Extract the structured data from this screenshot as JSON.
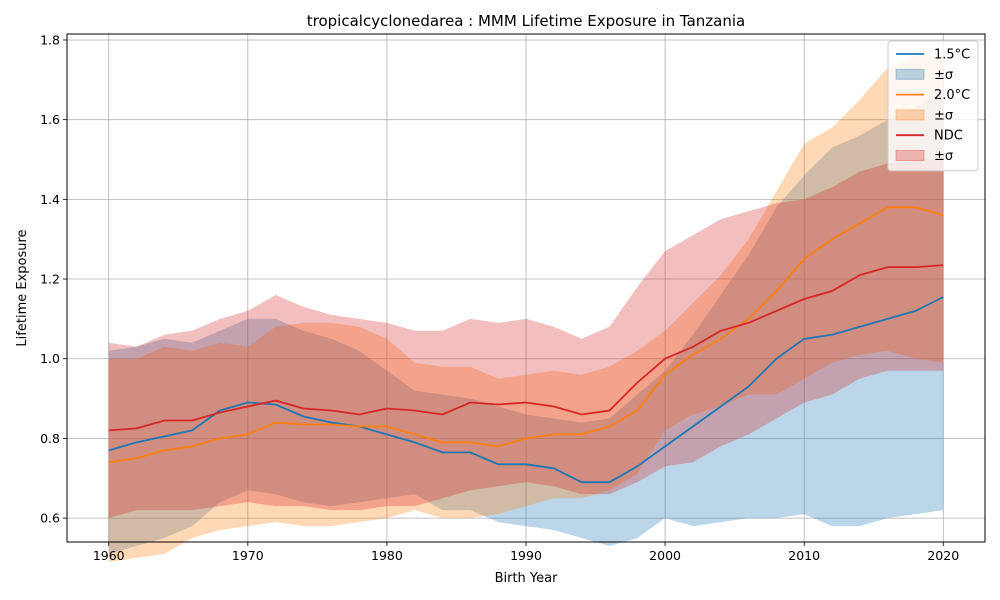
{
  "chart_data": {
    "type": "line",
    "title": "tropicalcyclonedarea : MMM Lifetime Exposure in Tanzania",
    "xlabel": "Birth Year",
    "ylabel": "Lifetime Exposure",
    "xlim": [
      1957,
      2023
    ],
    "ylim": [
      0.54,
      1.815
    ],
    "xticks": [
      1960,
      1970,
      1980,
      1990,
      2000,
      2010,
      2020
    ],
    "yticks": [
      0.6,
      0.8,
      1.0,
      1.2,
      1.4,
      1.6,
      1.8
    ],
    "ytick_labels": [
      "0.6",
      "0.8",
      "1.0",
      "1.2",
      "1.4",
      "1.6",
      "1.8"
    ],
    "grid": true,
    "legend_position": "top-right",
    "band_label": "±σ",
    "series": [
      {
        "name": "1.5°C",
        "color": "#1f77b4",
        "years": [
          1960,
          1962,
          1964,
          1966,
          1968,
          1970,
          1972,
          1974,
          1976,
          1978,
          1980,
          1982,
          1984,
          1986,
          1988,
          1990,
          1992,
          1994,
          1996,
          1998,
          2000,
          2002,
          2004,
          2006,
          2008,
          2010,
          2012,
          2014,
          2016,
          2018,
          2020
        ],
        "mean": [
          0.77,
          0.79,
          0.805,
          0.82,
          0.87,
          0.89,
          0.885,
          0.855,
          0.84,
          0.83,
          0.81,
          0.79,
          0.765,
          0.765,
          0.735,
          0.735,
          0.725,
          0.69,
          0.69,
          0.73,
          0.78,
          0.83,
          0.88,
          0.93,
          1.0,
          1.05,
          1.06,
          1.08,
          1.1,
          1.12,
          1.155
        ],
        "upper": [
          1.02,
          1.03,
          1.05,
          1.04,
          1.07,
          1.1,
          1.1,
          1.07,
          1.05,
          1.02,
          0.97,
          0.92,
          0.91,
          0.9,
          0.88,
          0.86,
          0.85,
          0.84,
          0.85,
          0.91,
          0.97,
          1.06,
          1.16,
          1.26,
          1.38,
          1.46,
          1.53,
          1.56,
          1.6,
          1.63,
          1.67
        ],
        "lower": [
          0.51,
          0.53,
          0.55,
          0.58,
          0.64,
          0.67,
          0.66,
          0.64,
          0.63,
          0.64,
          0.65,
          0.66,
          0.62,
          0.62,
          0.59,
          0.58,
          0.57,
          0.55,
          0.53,
          0.55,
          0.6,
          0.58,
          0.59,
          0.6,
          0.6,
          0.61,
          0.58,
          0.58,
          0.6,
          0.61,
          0.62
        ]
      },
      {
        "name": "2.0°C",
        "color": "#ff7f0e",
        "years": [
          1960,
          1962,
          1964,
          1966,
          1968,
          1970,
          1972,
          1974,
          1976,
          1978,
          1980,
          1982,
          1984,
          1986,
          1988,
          1990,
          1992,
          1994,
          1996,
          1998,
          2000,
          2002,
          2004,
          2006,
          2008,
          2010,
          2012,
          2014,
          2016,
          2018,
          2020
        ],
        "mean": [
          0.74,
          0.75,
          0.77,
          0.78,
          0.8,
          0.81,
          0.84,
          0.835,
          0.835,
          0.83,
          0.83,
          0.81,
          0.79,
          0.79,
          0.78,
          0.8,
          0.81,
          0.81,
          0.83,
          0.87,
          0.96,
          1.01,
          1.05,
          1.1,
          1.17,
          1.25,
          1.3,
          1.34,
          1.38,
          1.38,
          1.36
        ],
        "upper": [
          1.0,
          1.0,
          1.03,
          1.02,
          1.04,
          1.03,
          1.08,
          1.09,
          1.09,
          1.08,
          1.05,
          0.99,
          0.98,
          0.98,
          0.95,
          0.96,
          0.97,
          0.96,
          0.98,
          1.02,
          1.07,
          1.14,
          1.21,
          1.3,
          1.42,
          1.54,
          1.58,
          1.65,
          1.73,
          1.76,
          1.76
        ],
        "lower": [
          0.49,
          0.5,
          0.51,
          0.55,
          0.57,
          0.58,
          0.59,
          0.58,
          0.58,
          0.59,
          0.6,
          0.62,
          0.6,
          0.6,
          0.61,
          0.63,
          0.65,
          0.65,
          0.67,
          0.71,
          0.82,
          0.86,
          0.88,
          0.91,
          0.91,
          0.95,
          0.99,
          1.01,
          1.02,
          1.0,
          0.99
        ]
      },
      {
        "name": "NDC",
        "color": "#d62728",
        "years": [
          1960,
          1962,
          1964,
          1966,
          1968,
          1970,
          1972,
          1974,
          1976,
          1978,
          1980,
          1982,
          1984,
          1986,
          1988,
          1990,
          1992,
          1994,
          1996,
          1998,
          2000,
          2002,
          2004,
          2006,
          2008,
          2010,
          2012,
          2014,
          2016,
          2018,
          2020
        ],
        "mean": [
          0.82,
          0.825,
          0.845,
          0.845,
          0.865,
          0.88,
          0.895,
          0.875,
          0.87,
          0.86,
          0.875,
          0.87,
          0.86,
          0.89,
          0.885,
          0.89,
          0.88,
          0.86,
          0.87,
          0.94,
          1.0,
          1.03,
          1.07,
          1.09,
          1.12,
          1.15,
          1.17,
          1.21,
          1.23,
          1.23,
          1.235
        ],
        "upper": [
          1.04,
          1.03,
          1.06,
          1.07,
          1.1,
          1.12,
          1.16,
          1.13,
          1.11,
          1.1,
          1.09,
          1.07,
          1.07,
          1.1,
          1.09,
          1.1,
          1.08,
          1.05,
          1.08,
          1.18,
          1.27,
          1.31,
          1.35,
          1.37,
          1.39,
          1.4,
          1.43,
          1.47,
          1.49,
          1.5,
          1.5
        ],
        "lower": [
          0.6,
          0.62,
          0.62,
          0.62,
          0.63,
          0.64,
          0.63,
          0.63,
          0.62,
          0.62,
          0.63,
          0.63,
          0.65,
          0.67,
          0.68,
          0.69,
          0.68,
          0.66,
          0.66,
          0.69,
          0.73,
          0.74,
          0.78,
          0.81,
          0.85,
          0.89,
          0.91,
          0.95,
          0.97,
          0.97,
          0.97
        ]
      }
    ]
  }
}
